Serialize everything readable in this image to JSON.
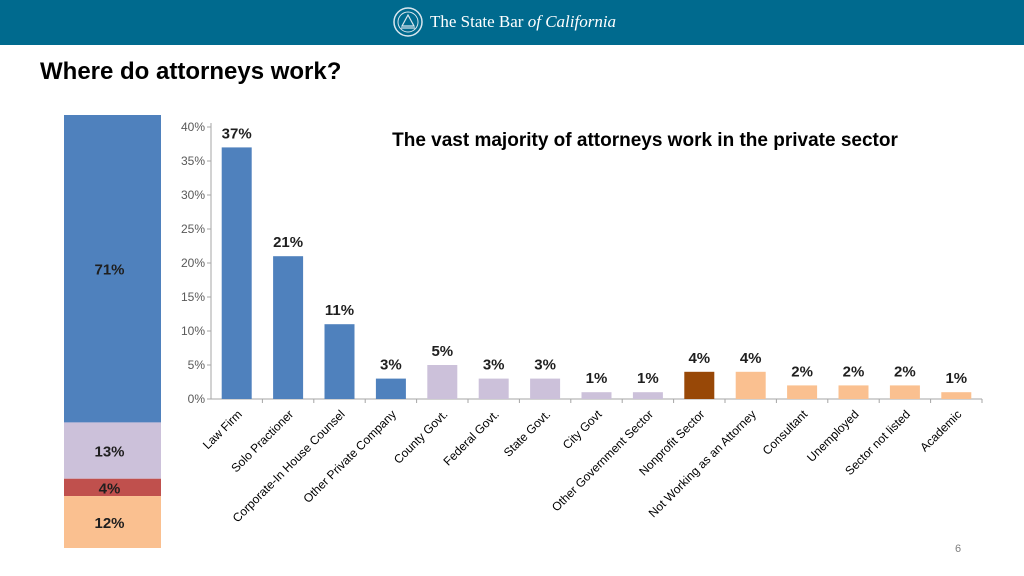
{
  "header": {
    "logo_text_main": "The State Bar ",
    "logo_text_italic": "of California",
    "brand_color": "#006a8e"
  },
  "page": {
    "title": "Where do attorneys work?",
    "page_number": "6"
  },
  "chart_data": [
    {
      "type": "bar",
      "stacked": true,
      "title": "",
      "segments": [
        {
          "value": 71,
          "label": "71%",
          "color": "#4f81bd"
        },
        {
          "value": 13,
          "label": "13%",
          "color": "#ccc1da"
        },
        {
          "value": 4,
          "label": "4%",
          "color": "#c0504d"
        },
        {
          "value": 12,
          "label": "12%",
          "color": "#fac090"
        }
      ]
    },
    {
      "type": "bar",
      "title": "The vast majority of attorneys work in the private sector",
      "xlabel": "",
      "ylabel": "",
      "ylim": [
        0,
        40
      ],
      "yticks": [
        "0%",
        "5%",
        "10%",
        "15%",
        "20%",
        "25%",
        "30%",
        "35%",
        "40%"
      ],
      "grid": false,
      "categories": [
        "Law Firm",
        "Solo Practioner",
        "Corporate-In House Counsel",
        "Other Private Company",
        "County Govt.",
        "Federal Govt.",
        "State Govt.",
        "City Govt",
        "Other Government Sector",
        "Nonprofit Sector",
        "Not Working as an Attorney",
        "Consultant",
        "Unemployed",
        "Sector not listed",
        "Academic"
      ],
      "values": [
        37,
        21,
        11,
        3,
        5,
        3,
        3,
        1,
        1,
        4,
        4,
        2,
        2,
        2,
        1
      ],
      "value_labels": [
        "37%",
        "21%",
        "11%",
        "3%",
        "5%",
        "3%",
        "3%",
        "1%",
        "1%",
        "4%",
        "4%",
        "2%",
        "2%",
        "2%",
        "1%"
      ],
      "colors": [
        "#4f81bd",
        "#4f81bd",
        "#4f81bd",
        "#4f81bd",
        "#ccc1da",
        "#ccc1da",
        "#ccc1da",
        "#ccc1da",
        "#ccc1da",
        "#984807",
        "#fac090",
        "#fac090",
        "#fac090",
        "#fac090",
        "#fac090"
      ]
    }
  ]
}
